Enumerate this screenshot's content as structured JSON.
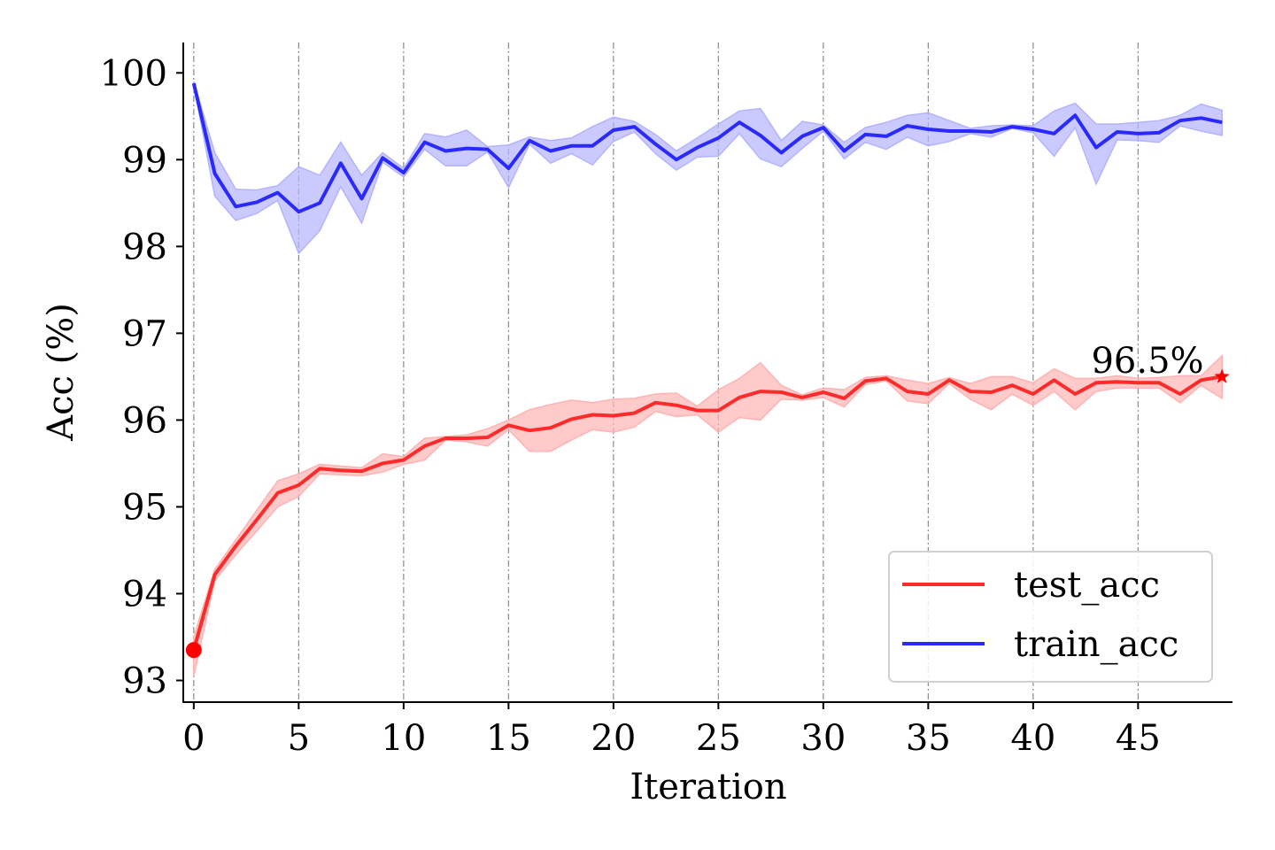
{
  "chart_data": {
    "type": "line",
    "xlabel": "Iteration",
    "ylabel": "Acc (%)",
    "xlim": [
      -0.5,
      49.5
    ],
    "ylim": [
      92.75,
      100.35
    ],
    "xticks": [
      0,
      5,
      10,
      15,
      20,
      25,
      30,
      35,
      40,
      45
    ],
    "yticks": [
      93,
      94,
      95,
      96,
      97,
      98,
      99,
      100
    ],
    "grid": "vertical dash-dot at x ticks",
    "legend_position": "lower-right",
    "x": [
      0,
      1,
      2,
      3,
      4,
      5,
      6,
      7,
      8,
      9,
      10,
      11,
      12,
      13,
      14,
      15,
      16,
      17,
      18,
      19,
      20,
      21,
      22,
      23,
      24,
      25,
      26,
      27,
      28,
      29,
      30,
      31,
      32,
      33,
      34,
      35,
      36,
      37,
      38,
      39,
      40,
      41,
      42,
      43,
      44,
      45,
      46,
      47,
      48,
      49
    ],
    "series": [
      {
        "name": "test_acc",
        "color": "#ff2a2a",
        "band_color": "#ffb3b3",
        "values": [
          93.35,
          94.22,
          94.55,
          94.85,
          95.16,
          95.25,
          95.44,
          95.42,
          95.41,
          95.5,
          95.54,
          95.7,
          95.79,
          95.79,
          95.8,
          95.94,
          95.88,
          95.91,
          96.01,
          96.06,
          96.05,
          96.08,
          96.2,
          96.17,
          96.11,
          96.11,
          96.26,
          96.33,
          96.32,
          96.26,
          96.32,
          96.25,
          96.45,
          96.48,
          96.33,
          96.3,
          96.46,
          96.33,
          96.32,
          96.4,
          96.3,
          96.46,
          96.3,
          96.43,
          96.44,
          96.43,
          96.43,
          96.3,
          96.46,
          96.5
        ],
        "upper": [
          93.5,
          94.28,
          94.62,
          94.96,
          95.3,
          95.38,
          95.49,
          95.47,
          95.45,
          95.61,
          95.58,
          95.79,
          95.81,
          95.83,
          95.9,
          96.0,
          96.12,
          96.18,
          96.23,
          96.2,
          96.24,
          96.25,
          96.3,
          96.31,
          96.16,
          96.35,
          96.48,
          96.66,
          96.4,
          96.29,
          96.37,
          96.35,
          96.49,
          96.51,
          96.46,
          96.42,
          96.49,
          96.42,
          96.5,
          96.5,
          96.43,
          96.59,
          96.48,
          96.48,
          96.51,
          96.48,
          96.49,
          96.51,
          96.51,
          96.74
        ],
        "lower": [
          93.05,
          94.15,
          94.45,
          94.72,
          95.0,
          95.12,
          95.38,
          95.37,
          95.36,
          95.4,
          95.49,
          95.54,
          95.77,
          95.75,
          95.7,
          95.89,
          95.64,
          95.64,
          95.77,
          95.89,
          95.86,
          95.92,
          96.1,
          96.04,
          96.06,
          95.86,
          96.03,
          96.0,
          96.24,
          96.23,
          96.26,
          96.15,
          96.41,
          96.45,
          96.22,
          96.19,
          96.42,
          96.24,
          96.12,
          96.3,
          96.17,
          96.33,
          96.12,
          96.33,
          96.37,
          96.37,
          96.37,
          96.2,
          96.4,
          96.25
        ]
      },
      {
        "name": "train_acc",
        "color": "#2a2aff",
        "band_color": "#b3b3ff",
        "values": [
          99.88,
          98.84,
          98.46,
          98.51,
          98.62,
          98.4,
          98.5,
          98.96,
          98.55,
          99.02,
          98.85,
          99.2,
          99.1,
          99.13,
          99.12,
          98.9,
          99.22,
          99.1,
          99.16,
          99.16,
          99.34,
          99.38,
          99.18,
          99.0,
          99.14,
          99.25,
          99.43,
          99.28,
          99.08,
          99.27,
          99.37,
          99.1,
          99.29,
          99.27,
          99.39,
          99.35,
          99.33,
          99.33,
          99.32,
          99.38,
          99.35,
          99.3,
          99.51,
          99.14,
          99.32,
          99.3,
          99.31,
          99.45,
          99.48,
          99.43
        ],
        "upper": [
          99.9,
          99.08,
          98.66,
          98.65,
          98.7,
          98.92,
          98.82,
          99.2,
          98.82,
          99.08,
          98.9,
          99.3,
          99.26,
          99.34,
          99.15,
          99.17,
          99.26,
          99.22,
          99.25,
          99.38,
          99.49,
          99.44,
          99.29,
          99.1,
          99.25,
          99.41,
          99.56,
          99.59,
          99.22,
          99.44,
          99.4,
          99.2,
          99.37,
          99.43,
          99.51,
          99.54,
          99.45,
          99.36,
          99.39,
          99.4,
          99.39,
          99.56,
          99.65,
          99.41,
          99.41,
          99.43,
          99.45,
          99.51,
          99.64,
          99.57
        ],
        "lower": [
          99.86,
          98.58,
          98.3,
          98.38,
          98.53,
          97.92,
          98.18,
          98.69,
          98.27,
          98.97,
          98.8,
          99.12,
          98.93,
          98.93,
          99.09,
          98.68,
          99.18,
          98.96,
          99.07,
          98.94,
          99.21,
          99.32,
          99.07,
          98.88,
          99.03,
          99.04,
          99.3,
          99.01,
          98.92,
          99.13,
          99.33,
          99.01,
          99.2,
          99.12,
          99.26,
          99.16,
          99.21,
          99.3,
          99.26,
          99.36,
          99.31,
          99.04,
          99.37,
          98.72,
          99.23,
          99.22,
          99.2,
          99.39,
          99.33,
          99.28
        ]
      }
    ],
    "start_marker": {
      "series": "test_acc",
      "x": 0,
      "y": 93.35,
      "shape": "circle"
    },
    "end_marker": {
      "series": "test_acc",
      "x": 49,
      "y": 96.5,
      "shape": "star",
      "label": "96.5%"
    }
  }
}
